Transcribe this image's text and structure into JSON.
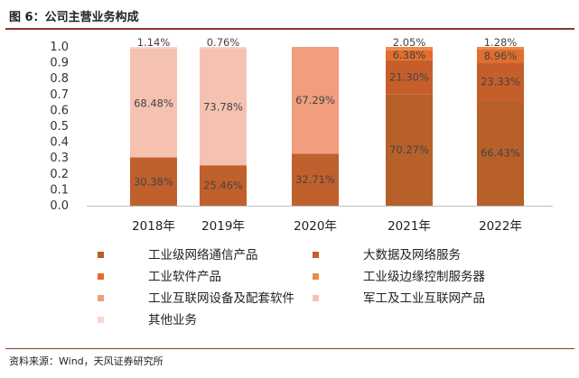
{
  "header": {
    "title": "图 6：公司主营业务构成"
  },
  "footer": {
    "source": "资料来源：Wind，天风证券研究所"
  },
  "chart_data": {
    "type": "bar",
    "stacked": true,
    "categories": [
      "2018年",
      "2019年",
      "2020年",
      "2021年",
      "2022年"
    ],
    "ylim": [
      0,
      1.0
    ],
    "yticks": [
      "0.0",
      "0.1",
      "0.2",
      "0.3",
      "0.4",
      "0.5",
      "0.6",
      "0.7",
      "0.8",
      "0.9",
      "1.0"
    ],
    "grid": false,
    "legend_position": "bottom",
    "series": [
      {
        "name": "工业级网络通信产品",
        "color": "#b8602a",
        "values": [
          0,
          0,
          0,
          0.7027,
          0.6643
        ],
        "labels": [
          "",
          "",
          "",
          "70.27%",
          "66.43%"
        ]
      },
      {
        "name": "大数据及网络服务",
        "color": "#c65e2b",
        "values": [
          0,
          0,
          0,
          0.213,
          0.2333
        ],
        "labels": [
          "",
          "",
          "",
          "21.30%",
          "23.33%"
        ]
      },
      {
        "name": "工业软件产品",
        "color": "#e06e2e",
        "values": [
          0,
          0,
          0,
          0.0638,
          0.0896
        ],
        "labels": [
          "",
          "",
          "",
          "6.38%",
          "8.96%"
        ]
      },
      {
        "name": "工业级边缘控制服务器",
        "color": "#ec8a45",
        "values": [
          0,
          0,
          0,
          0.0205,
          0.0128
        ],
        "labels": [
          "",
          "",
          "",
          "2.05%",
          "1.28%"
        ]
      },
      {
        "name": "工业互联网设备及配套软件",
        "color": "#f09e7e",
        "values": [
          0,
          0,
          0.6729,
          0,
          0
        ],
        "labels": [
          "",
          "",
          "67.29%",
          "",
          ""
        ]
      },
      {
        "name": "军工及工业互联网产品",
        "color": "#f5c2b1",
        "values": [
          0.6848,
          0.7378,
          0,
          0,
          0
        ],
        "labels": [
          "68.48%",
          "73.78%",
          "",
          "",
          ""
        ]
      },
      {
        "name": "其他业务",
        "color": "#f7d7cc",
        "values": [
          0.0114,
          0.0076,
          0,
          0,
          0
        ],
        "labels": [
          "1.14%",
          "0.76%",
          "",
          "",
          ""
        ]
      }
    ],
    "base_series": {
      "color": "#c0602c",
      "values": [
        0.3038,
        0.2546,
        0.3271,
        0,
        0
      ],
      "labels": [
        "30.38%",
        "25.46%",
        "32.71%",
        "",
        ""
      ]
    }
  }
}
